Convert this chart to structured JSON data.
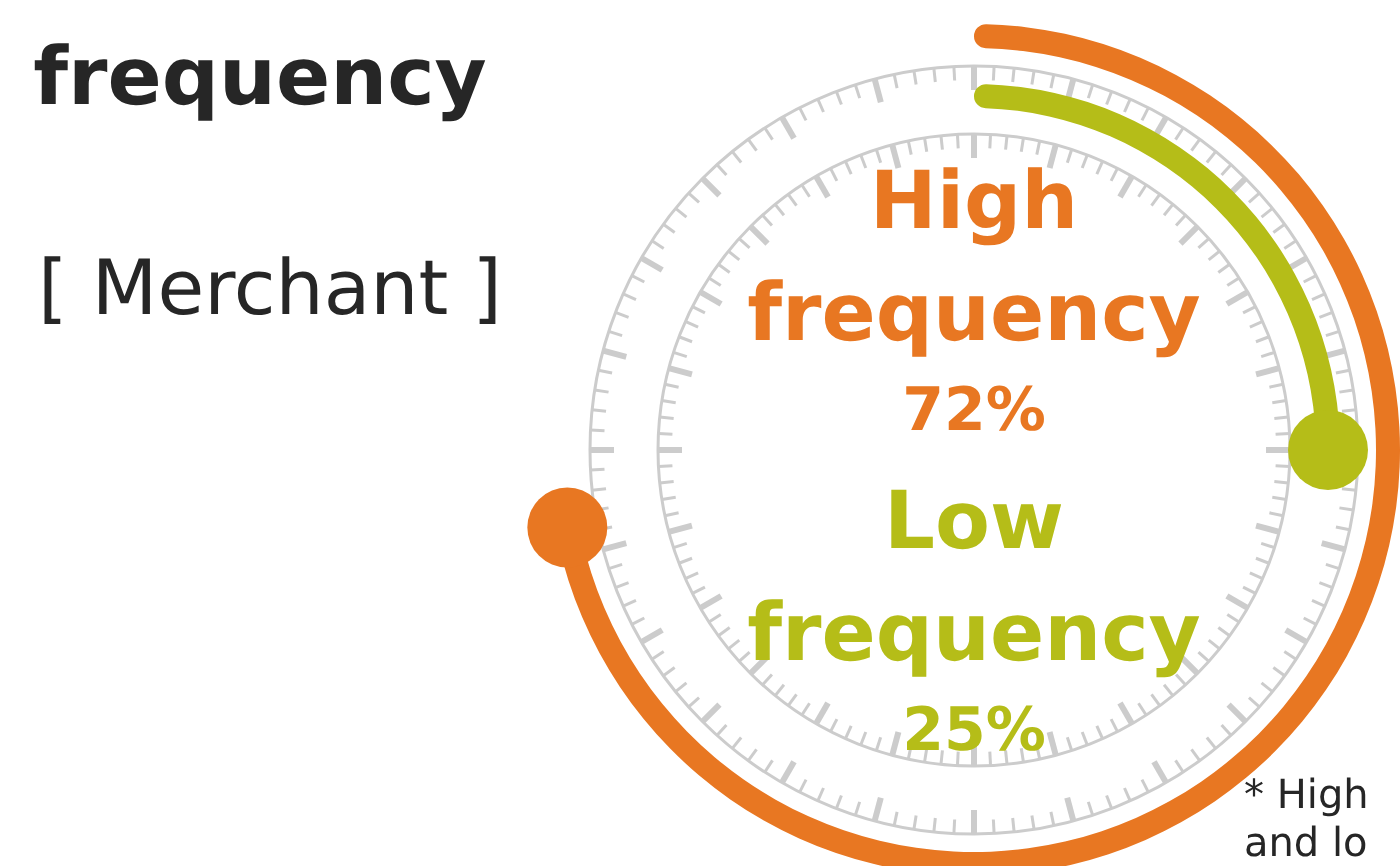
{
  "chart_data": {
    "type": "other",
    "title": "frequency",
    "categories": [
      "High frequency",
      "Low frequency"
    ],
    "values": [
      72,
      25
    ],
    "colors": [
      "#e87722",
      "#b5bd18"
    ],
    "value_labels": [
      "72%",
      "25%"
    ],
    "annotations": [
      "[ Merchant ]",
      "* High",
      "and lo"
    ]
  }
}
